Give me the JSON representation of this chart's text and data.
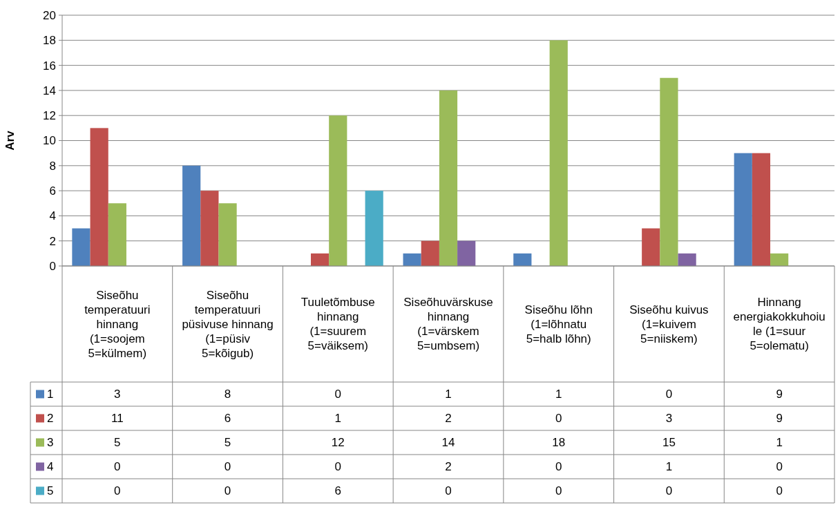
{
  "chart_data": {
    "type": "bar",
    "ylabel": "Arv",
    "categories": [
      "Siseõhu temperatuuri hinnang (1=soojem 5=külmem)",
      "Siseõhu temperatuuri püsivuse hinnang (1=püsiv 5=kõigub)",
      "Tuuletõmbuse hinnang (1=suurem 5=väiksem)",
      "Siseõhuvärskuse hinnang (1=värskem 5=umbsem)",
      "Siseõhu lõhn (1=lõhnatu 5=halb lõhn)",
      "Siseõhu kuivus (1=kuivem 5=niiskem)",
      "Hinnang energiakokkuhoiule (1=suur 5=olematu)"
    ],
    "series": [
      {
        "name": "1",
        "color": "#4f81bd",
        "values": [
          3,
          8,
          0,
          1,
          1,
          0,
          9
        ]
      },
      {
        "name": "2",
        "color": "#c0504d",
        "values": [
          11,
          6,
          1,
          2,
          0,
          3,
          9
        ]
      },
      {
        "name": "3",
        "color": "#9bbb59",
        "values": [
          5,
          5,
          12,
          14,
          18,
          15,
          1
        ]
      },
      {
        "name": "4",
        "color": "#8064a2",
        "values": [
          0,
          0,
          0,
          2,
          0,
          1,
          0
        ]
      },
      {
        "name": "5",
        "color": "#4bacc6",
        "values": [
          0,
          0,
          6,
          0,
          0,
          0,
          0
        ]
      }
    ],
    "ylim": [
      0,
      20
    ],
    "yticks": [
      0,
      2,
      4,
      6,
      8,
      10,
      12,
      14,
      16,
      18,
      20
    ],
    "grid": "y",
    "data_labels": true,
    "legend": "bottom"
  }
}
